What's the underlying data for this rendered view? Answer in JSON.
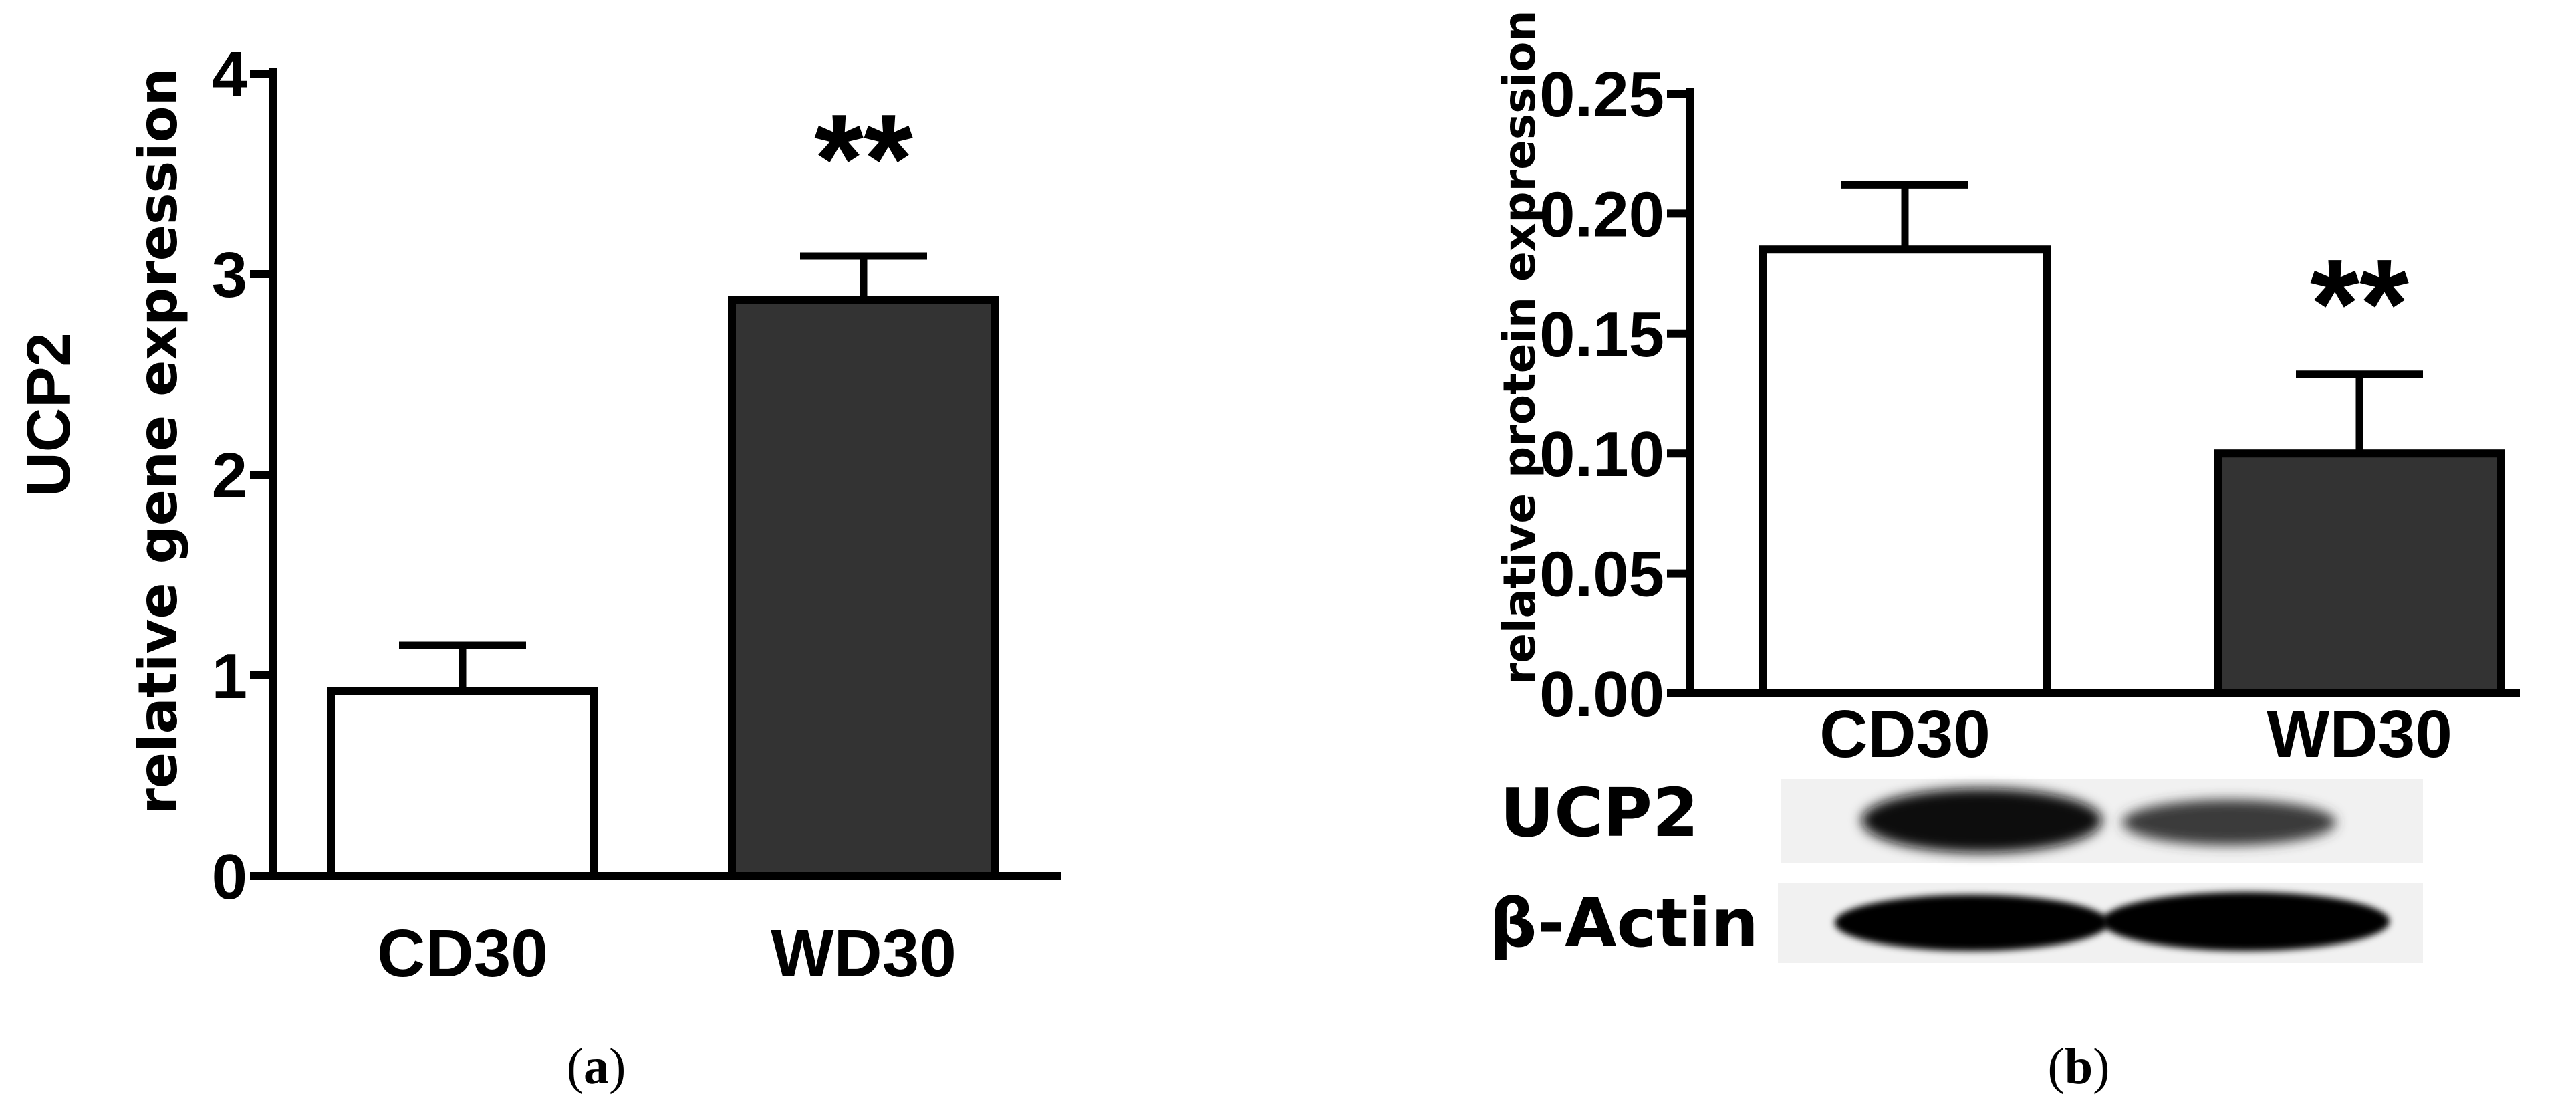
{
  "chart_data": [
    {
      "type": "bar",
      "panel_label": "a",
      "categories": [
        "CD30",
        "WD30"
      ],
      "values": [
        0.92,
        2.87
      ],
      "errors": [
        0.23,
        0.22
      ],
      "colors": [
        "#ffffff",
        "#333333"
      ],
      "significance": [
        "",
        "**"
      ],
      "ylabel_main": "UCP2",
      "ylabel_sub": "relative gene expression",
      "ylim": [
        0,
        4
      ],
      "yticks": [
        "0",
        "1",
        "2",
        "3",
        "4"
      ],
      "tick_values": [
        0,
        1,
        2,
        3,
        4
      ]
    },
    {
      "type": "bar",
      "panel_label": "b",
      "categories": [
        "CD30",
        "WD30"
      ],
      "values": [
        0.185,
        0.1
      ],
      "errors": [
        0.027,
        0.033
      ],
      "colors": [
        "#ffffff",
        "#333333"
      ],
      "significance": [
        "",
        "**"
      ],
      "ylabel": "relative protein expression",
      "ylim": [
        0,
        0.25
      ],
      "yticks": [
        "0.00",
        "0.05",
        "0.10",
        "0.15",
        "0.20",
        "0.25"
      ],
      "tick_values": [
        0,
        0.05,
        0.1,
        0.15,
        0.2,
        0.25
      ],
      "blot_labels": [
        "UCP2",
        "β-Actin"
      ]
    }
  ]
}
